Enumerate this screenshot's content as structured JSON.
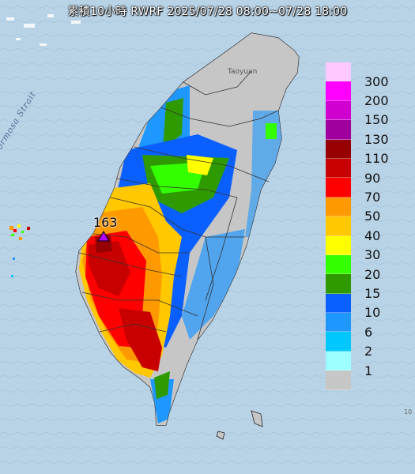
{
  "map": {
    "title": "累積10小時 RWRF 2025/07/28 08:00~07/28 18:00",
    "sea_label": "Formosa Strait",
    "place_label": "Taoyuan",
    "max_value": "163",
    "edge_label": "10"
  },
  "legend": [
    {
      "label": "300",
      "color": "#ffc8ff"
    },
    {
      "label": "200",
      "color": "#ff00ff"
    },
    {
      "label": "150",
      "color": "#d000d0"
    },
    {
      "label": "130",
      "color": "#a0009e"
    },
    {
      "label": "110",
      "color": "#960000"
    },
    {
      "label": "90",
      "color": "#c80000"
    },
    {
      "label": "70",
      "color": "#ff0000"
    },
    {
      "label": "50",
      "color": "#ff9900"
    },
    {
      "label": "40",
      "color": "#ffc800"
    },
    {
      "label": "30",
      "color": "#ffff00"
    },
    {
      "label": "20",
      "color": "#33ff00"
    },
    {
      "label": "15",
      "color": "#2f9a00"
    },
    {
      "label": "10",
      "color": "#0a60ff"
    },
    {
      "label": "6",
      "color": "#1e97ff"
    },
    {
      "label": "2",
      "color": "#00c8ff"
    },
    {
      "label": "1",
      "color": "#9bffff"
    },
    {
      "label": "",
      "color": "#c6c6c6"
    }
  ]
}
